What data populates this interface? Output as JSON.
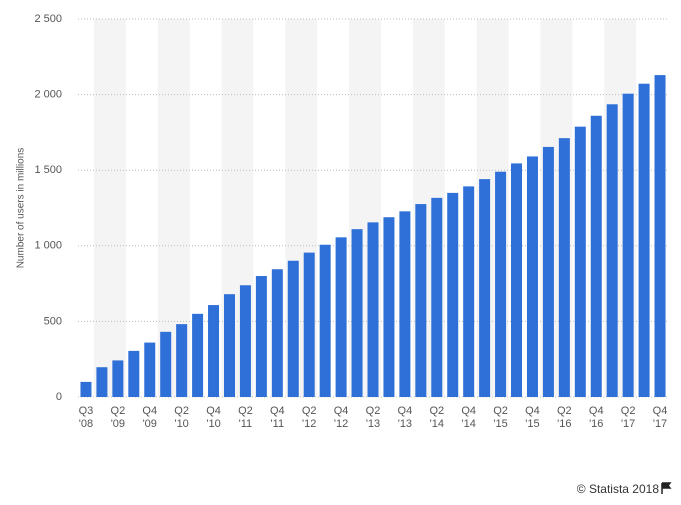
{
  "chart_data": {
    "type": "bar",
    "y_axis_label": "Number of users in millions",
    "source": "© Statista 2018",
    "categories": [
      "Q3 '08",
      null,
      "Q2 '09",
      null,
      "Q4 '09",
      null,
      "Q2 '10",
      null,
      "Q4 '10",
      null,
      "Q2 '11",
      null,
      "Q4 '11",
      null,
      "Q2 '12",
      null,
      "Q4 '12",
      null,
      "Q2 '13",
      null,
      "Q4 '13",
      null,
      "Q2 '14",
      null,
      "Q4 '14",
      null,
      "Q2 '15",
      null,
      "Q4 '15",
      null,
      "Q2 '16",
      null,
      "Q4 '16",
      null,
      "Q2 '17",
      null,
      "Q4 '17"
    ],
    "values": [
      100,
      197,
      242,
      305,
      360,
      431,
      482,
      550,
      608,
      680,
      739,
      800,
      845,
      901,
      955,
      1007,
      1056,
      1110,
      1155,
      1189,
      1228,
      1276,
      1317,
      1350,
      1393,
      1441,
      1490,
      1545,
      1591,
      1654,
      1712,
      1788,
      1860,
      1936,
      2006,
      2072,
      2129
    ],
    "color": "#2f6fd8",
    "ylim": [
      0,
      2500
    ],
    "yticks": [
      0,
      500,
      {
        "value": 1000,
        "label": "1 000"
      },
      {
        "value": 1500,
        "label": "1 500"
      },
      {
        "value": 2000,
        "label": "2 000"
      },
      {
        "value": 2500,
        "label": "2 500"
      }
    ],
    "grid": true
  }
}
